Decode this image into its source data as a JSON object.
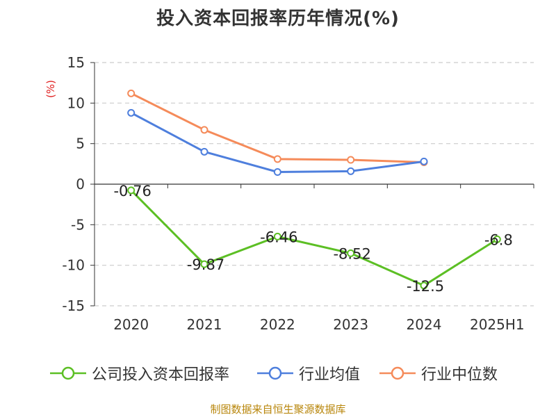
{
  "title": "投入资本回报率历年情况(%)",
  "source": "制图数据来自恒生聚源数据库",
  "chart_data": {
    "type": "line",
    "categories": [
      "2020",
      "2021",
      "2022",
      "2023",
      "2024",
      "2025H1"
    ],
    "ylabel": "(%)",
    "ylim": [
      -15,
      15
    ],
    "yticks": [
      15,
      10,
      5,
      0,
      -5,
      -10,
      -15
    ],
    "grid": true,
    "legend_position": "bottom",
    "series": [
      {
        "name": "公司投入资本回报率",
        "color": "#5cbf24",
        "values": [
          -0.76,
          -9.87,
          -6.46,
          -8.52,
          -12.5,
          -6.8
        ],
        "labels": [
          "-0.76",
          "-9.87",
          "-6.46",
          "-8.52",
          "-12.5",
          "-6.8"
        ]
      },
      {
        "name": "行业均值",
        "color": "#4e7fdd",
        "values": [
          8.8,
          4.0,
          1.5,
          1.6,
          2.8,
          null
        ]
      },
      {
        "name": "行业中位数",
        "color": "#f58b5a",
        "values": [
          11.2,
          6.7,
          3.1,
          3.0,
          2.7,
          null
        ]
      }
    ]
  }
}
